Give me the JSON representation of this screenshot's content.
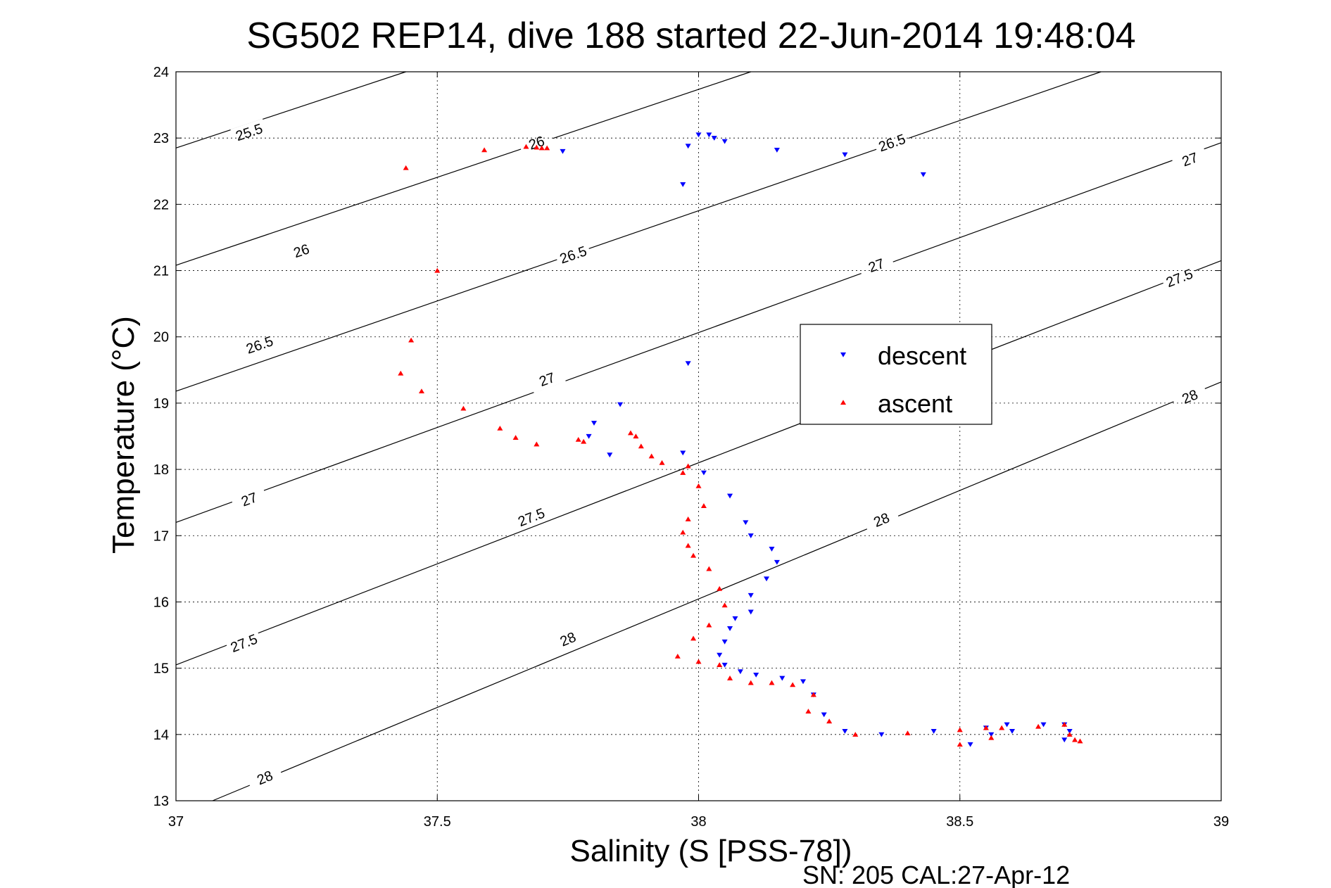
{
  "chart_data": {
    "type": "scatter",
    "title": "SG502 REP14, dive 188 started 22-Jun-2014 19:48:04",
    "xlabel": "Salinity (S [PSS-78])",
    "ylabel": "Temperature (°C)",
    "xlim": [
      37,
      39
    ],
    "ylim": [
      13,
      24
    ],
    "xticks": [
      37,
      37.5,
      38,
      38.5,
      39
    ],
    "xtick_labels": [
      "37",
      "37.5",
      "38",
      "38.5",
      "39"
    ],
    "yticks": [
      13,
      14,
      15,
      16,
      17,
      18,
      19,
      20,
      21,
      22,
      23,
      24
    ],
    "ytick_labels": [
      "13",
      "14",
      "15",
      "16",
      "17",
      "18",
      "19",
      "20",
      "21",
      "22",
      "23",
      "24"
    ],
    "grid": true,
    "legend_position": "upper-right",
    "footer": "SN: 205  CAL:27-Apr-12",
    "series": [
      {
        "name": "descent",
        "color": "#0000ff",
        "marker": "triangle-down",
        "points": [
          [
            37.74,
            22.8
          ],
          [
            37.97,
            22.3
          ],
          [
            37.98,
            22.88
          ],
          [
            38.0,
            23.05
          ],
          [
            38.02,
            23.05
          ],
          [
            38.03,
            23.0
          ],
          [
            38.05,
            22.95
          ],
          [
            38.15,
            22.82
          ],
          [
            38.28,
            22.75
          ],
          [
            38.43,
            22.45
          ],
          [
            37.98,
            19.6
          ],
          [
            37.85,
            18.98
          ],
          [
            37.8,
            18.7
          ],
          [
            37.79,
            18.5
          ],
          [
            37.83,
            18.22
          ],
          [
            37.97,
            18.25
          ],
          [
            38.01,
            17.95
          ],
          [
            38.06,
            17.6
          ],
          [
            38.09,
            17.2
          ],
          [
            38.1,
            17.0
          ],
          [
            38.14,
            16.8
          ],
          [
            38.15,
            16.6
          ],
          [
            38.13,
            16.35
          ],
          [
            38.1,
            16.1
          ],
          [
            38.1,
            15.85
          ],
          [
            38.07,
            15.75
          ],
          [
            38.06,
            15.6
          ],
          [
            38.05,
            15.4
          ],
          [
            38.04,
            15.2
          ],
          [
            38.05,
            15.05
          ],
          [
            38.08,
            14.95
          ],
          [
            38.11,
            14.9
          ],
          [
            38.16,
            14.85
          ],
          [
            38.2,
            14.8
          ],
          [
            38.22,
            14.6
          ],
          [
            38.24,
            14.3
          ],
          [
            38.28,
            14.05
          ],
          [
            38.35,
            14.0
          ],
          [
            38.45,
            14.05
          ],
          [
            38.55,
            14.1
          ],
          [
            38.59,
            14.15
          ],
          [
            38.56,
            14.0
          ],
          [
            38.52,
            13.85
          ],
          [
            38.6,
            14.05
          ],
          [
            38.66,
            14.15
          ],
          [
            38.7,
            14.15
          ],
          [
            38.71,
            14.05
          ],
          [
            38.7,
            13.92
          ]
        ]
      },
      {
        "name": "ascent",
        "color": "#ff0000",
        "marker": "triangle-up",
        "points": [
          [
            37.44,
            22.55
          ],
          [
            37.59,
            22.82
          ],
          [
            37.67,
            22.87
          ],
          [
            37.69,
            22.86
          ],
          [
            37.7,
            22.85
          ],
          [
            37.71,
            22.85
          ],
          [
            37.5,
            21.0
          ],
          [
            37.45,
            19.95
          ],
          [
            37.43,
            19.45
          ],
          [
            37.47,
            19.18
          ],
          [
            37.55,
            18.92
          ],
          [
            37.62,
            18.62
          ],
          [
            37.65,
            18.48
          ],
          [
            37.69,
            18.38
          ],
          [
            37.77,
            18.45
          ],
          [
            37.78,
            18.42
          ],
          [
            37.87,
            18.55
          ],
          [
            37.88,
            18.5
          ],
          [
            37.89,
            18.35
          ],
          [
            37.91,
            18.2
          ],
          [
            37.93,
            18.1
          ],
          [
            37.97,
            17.95
          ],
          [
            37.98,
            18.05
          ],
          [
            38.0,
            17.75
          ],
          [
            38.01,
            17.45
          ],
          [
            37.98,
            17.25
          ],
          [
            37.97,
            17.05
          ],
          [
            37.98,
            16.85
          ],
          [
            37.99,
            16.7
          ],
          [
            38.02,
            16.5
          ],
          [
            38.04,
            16.2
          ],
          [
            38.05,
            15.95
          ],
          [
            38.02,
            15.65
          ],
          [
            37.99,
            15.45
          ],
          [
            37.96,
            15.18
          ],
          [
            38.0,
            15.1
          ],
          [
            38.04,
            15.05
          ],
          [
            38.06,
            14.85
          ],
          [
            38.1,
            14.78
          ],
          [
            38.14,
            14.78
          ],
          [
            38.18,
            14.75
          ],
          [
            38.22,
            14.6
          ],
          [
            38.21,
            14.35
          ],
          [
            38.25,
            14.2
          ],
          [
            38.3,
            14.0
          ],
          [
            38.4,
            14.02
          ],
          [
            38.5,
            14.07
          ],
          [
            38.55,
            14.1
          ],
          [
            38.58,
            14.1
          ],
          [
            38.5,
            13.85
          ],
          [
            38.56,
            13.95
          ],
          [
            38.65,
            14.12
          ],
          [
            38.7,
            14.15
          ],
          [
            38.71,
            14.0
          ],
          [
            38.72,
            13.92
          ],
          [
            38.73,
            13.9
          ]
        ]
      }
    ],
    "contours": [
      {
        "level": 25.5,
        "label": "25.5"
      },
      {
        "level": 26,
        "label": "26"
      },
      {
        "level": 26.5,
        "label": "26.5"
      },
      {
        "level": 27,
        "label": "27"
      },
      {
        "level": 27.5,
        "label": "27.5"
      },
      {
        "level": 28,
        "label": "28"
      }
    ]
  }
}
